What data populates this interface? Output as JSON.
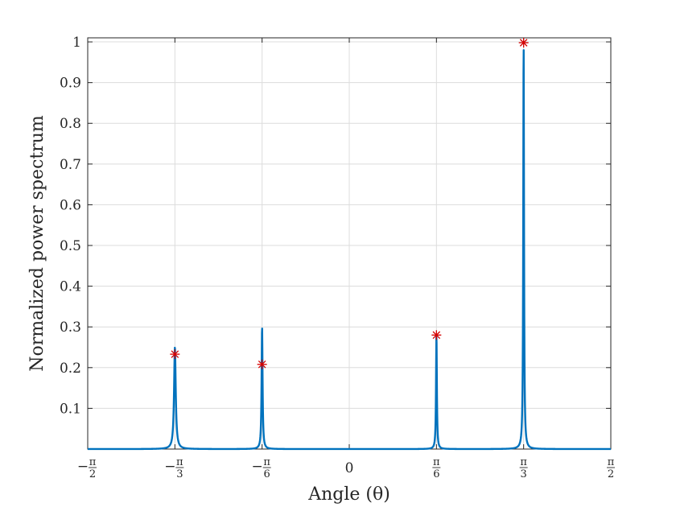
{
  "chart_data": {
    "type": "line",
    "title": "",
    "xlabel": "Angle (θ)",
    "ylabel": "Normalized power spectrum",
    "xlim": [
      -1.5708,
      1.5708
    ],
    "ylim": [
      0,
      1.01
    ],
    "grid": true,
    "x_ticks": [
      {
        "value": -1.5708,
        "sign": "−",
        "num": "π",
        "den": "2"
      },
      {
        "value": -1.0472,
        "sign": "−",
        "num": "π",
        "den": "3"
      },
      {
        "value": -0.5236,
        "sign": "−",
        "num": "π",
        "den": "6"
      },
      {
        "value": 0,
        "sign": "",
        "num": "0",
        "den": ""
      },
      {
        "value": 0.5236,
        "sign": "",
        "num": "π",
        "den": "6"
      },
      {
        "value": 1.0472,
        "sign": "",
        "num": "π",
        "den": "3"
      },
      {
        "value": 1.5708,
        "sign": "",
        "num": "π",
        "den": "2"
      }
    ],
    "y_ticks": [
      "0.1",
      "0.2",
      "0.3",
      "0.4",
      "0.5",
      "0.6",
      "0.7",
      "0.8",
      "0.9",
      "1"
    ],
    "series": [
      {
        "color": "#0072BD",
        "peaks": [
          {
            "x": -1.0472,
            "height": 0.25,
            "width": 0.006
          },
          {
            "x": -0.5236,
            "height": 0.3,
            "width": 0.0035
          },
          {
            "x": 0.5236,
            "height": 0.28,
            "width": 0.003
          },
          {
            "x": 1.0472,
            "height": 1.0,
            "width": 0.0028
          }
        ]
      }
    ],
    "markers": {
      "color": "#D40000",
      "symbol": "asterisk",
      "points": [
        {
          "x": -1.0472,
          "y": 0.233
        },
        {
          "x": -0.5236,
          "y": 0.208
        },
        {
          "x": 0.5236,
          "y": 0.28
        },
        {
          "x": 1.0472,
          "y": 0.998
        }
      ]
    }
  }
}
